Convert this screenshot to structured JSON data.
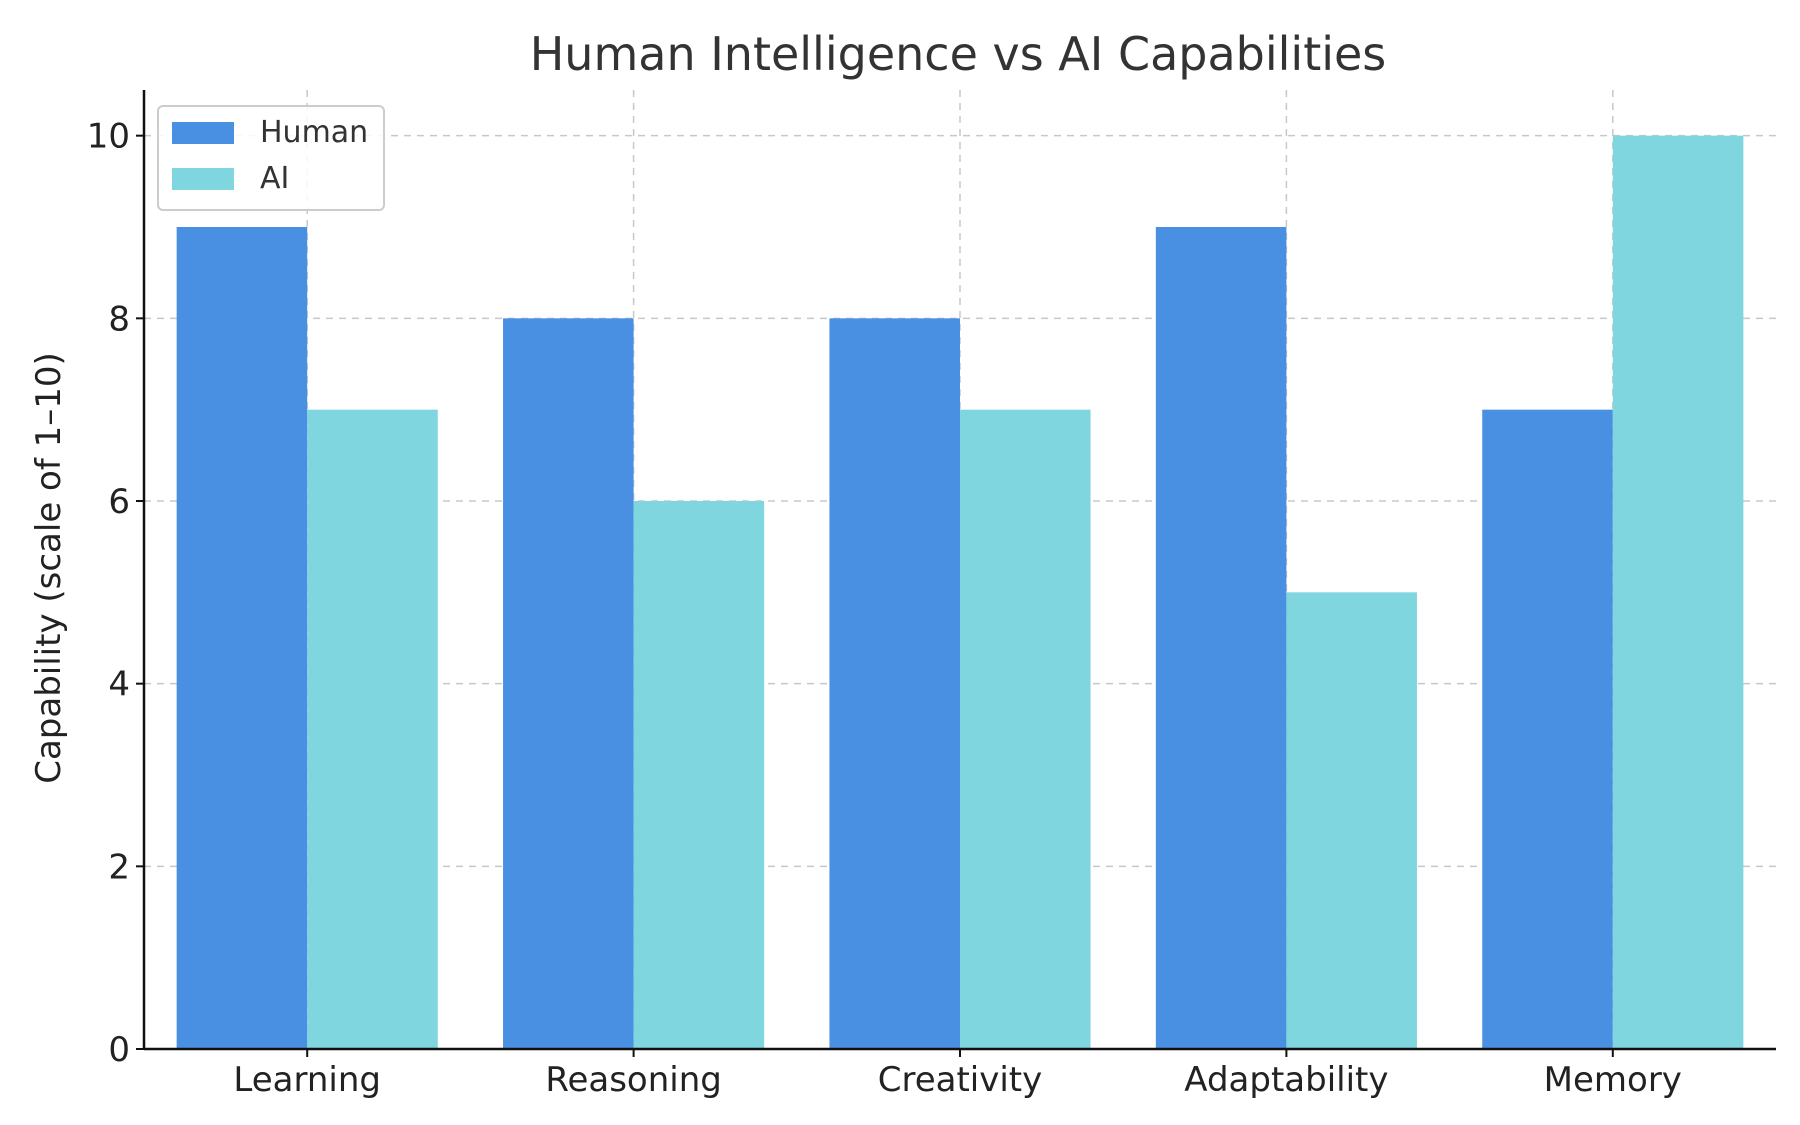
{
  "chart_data": {
    "type": "bar",
    "title": "Human Intelligence vs AI Capabilities",
    "xlabel": "",
    "ylabel": "Capability (scale of 1–10)",
    "categories": [
      "Learning",
      "Reasoning",
      "Creativity",
      "Adaptability",
      "Memory"
    ],
    "series": [
      {
        "name": "Human",
        "values": [
          9,
          8,
          8,
          9,
          7
        ],
        "color": "#4A90E2"
      },
      {
        "name": "AI",
        "values": [
          7,
          6,
          7,
          5,
          10
        ],
        "color": "#7FD6DF"
      }
    ],
    "ylim": [
      0,
      10.5
    ],
    "yticks": [
      "0",
      "2",
      "4",
      "6",
      "8",
      "10"
    ],
    "grid": true,
    "legend_position": "top-left"
  }
}
